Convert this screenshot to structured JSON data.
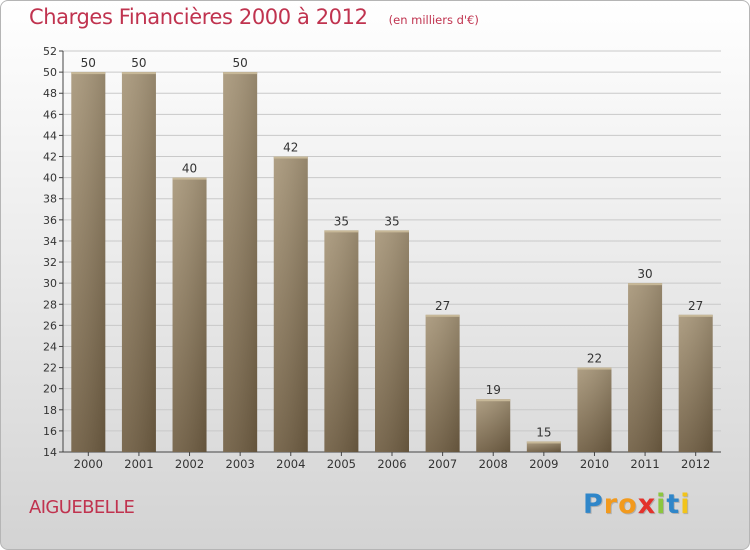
{
  "chart_data": {
    "type": "bar",
    "title": "Charges Financières 2000 à 2012",
    "subtitle": "(en milliers d'€)",
    "categories": [
      "2000",
      "2001",
      "2002",
      "2003",
      "2004",
      "2005",
      "2006",
      "2007",
      "2008",
      "2009",
      "2010",
      "2011",
      "2012"
    ],
    "values": [
      50,
      50,
      40,
      50,
      42,
      35,
      35,
      27,
      19,
      15,
      22,
      30,
      27
    ],
    "ylim": [
      14,
      52
    ],
    "yticks": [
      14,
      16,
      18,
      20,
      22,
      24,
      26,
      28,
      30,
      32,
      34,
      36,
      38,
      40,
      42,
      44,
      46,
      48,
      50,
      52
    ],
    "grid": true,
    "bar_color": "#8a7455",
    "data_labels": true
  },
  "location": "AIGUEBELLE",
  "logo": {
    "letters": [
      "P",
      "r",
      "o",
      "x",
      "i",
      "t",
      "i"
    ],
    "colors": [
      "#2f86c9",
      "#f29a1d",
      "#f29a1d",
      "#e3322c",
      "#8cc63f",
      "#2f86c9",
      "#f2c41a"
    ]
  }
}
